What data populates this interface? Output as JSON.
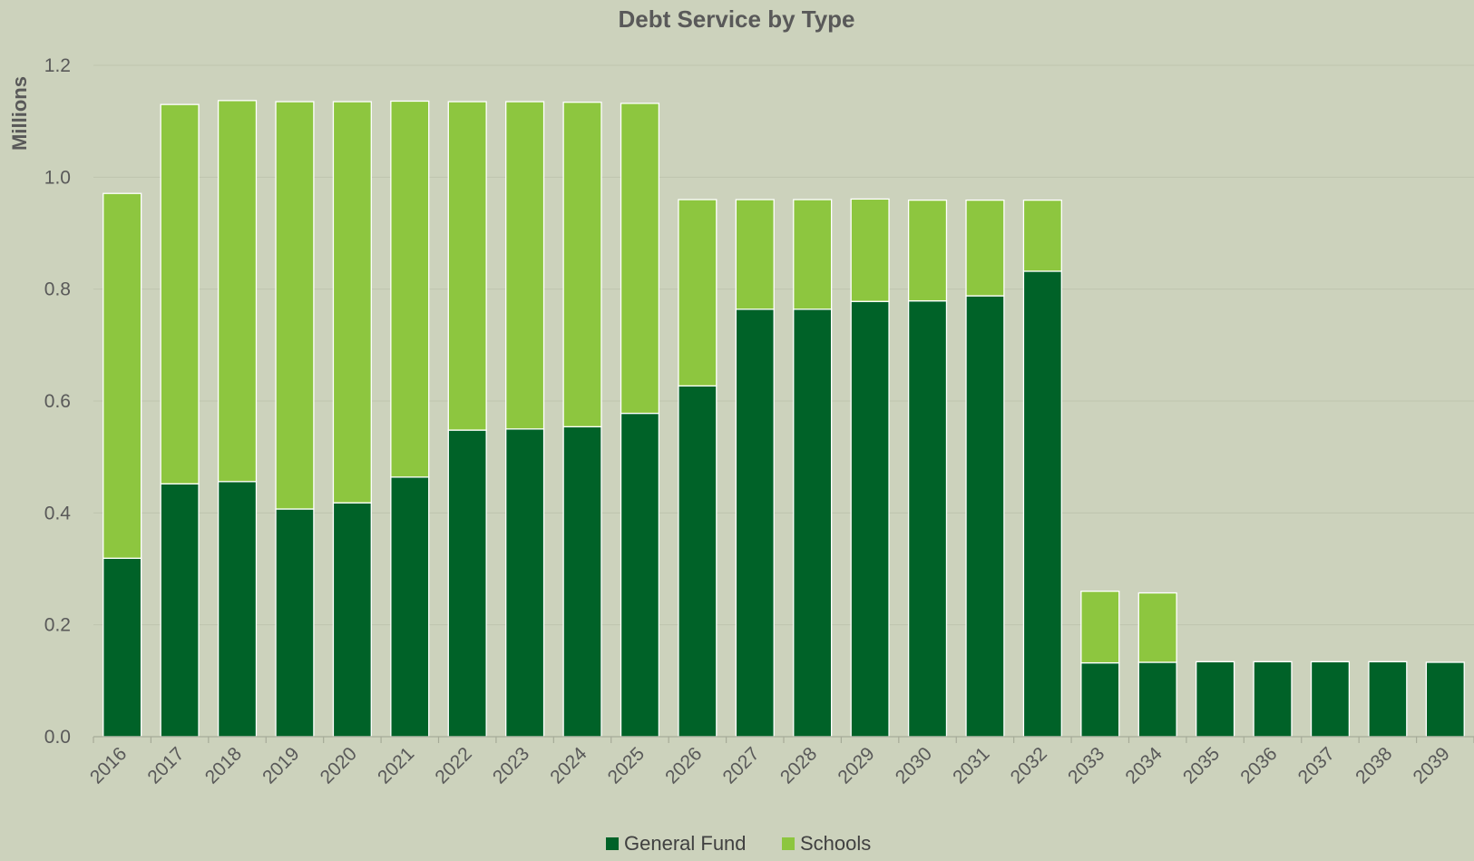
{
  "chart_data": {
    "type": "bar",
    "stacked": true,
    "title": "Debt Service by Type",
    "ylabel": "Millions",
    "xlabel": "",
    "ylim": [
      0,
      1.2
    ],
    "yticks": [
      "0.0",
      "0.2",
      "0.4",
      "0.6",
      "0.8",
      "1.0",
      "1.2"
    ],
    "ytick_values": [
      0,
      0.2,
      0.4,
      0.6,
      0.8,
      1.0,
      1.2
    ],
    "grid": true,
    "legend_position": "bottom",
    "categories": [
      "2016",
      "2017",
      "2018",
      "2019",
      "2020",
      "2021",
      "2022",
      "2023",
      "2024",
      "2025",
      "2026",
      "2027",
      "2028",
      "2029",
      "2030",
      "2031",
      "2032",
      "2033",
      "2034",
      "2035",
      "2036",
      "2037",
      "2038",
      "2039"
    ],
    "series": [
      {
        "name": "General Fund",
        "color": "#006228",
        "values": [
          0.319,
          0.452,
          0.456,
          0.407,
          0.418,
          0.464,
          0.548,
          0.55,
          0.554,
          0.578,
          0.627,
          0.764,
          0.764,
          0.778,
          0.779,
          0.788,
          0.832,
          0.132,
          0.133,
          0.134,
          0.134,
          0.134,
          0.134,
          0.133
        ]
      },
      {
        "name": "Schools",
        "color": "#8DC63F",
        "values": [
          0.652,
          0.678,
          0.681,
          0.728,
          0.717,
          0.672,
          0.587,
          0.585,
          0.58,
          0.554,
          0.333,
          0.196,
          0.196,
          0.183,
          0.18,
          0.171,
          0.127,
          0.128,
          0.124,
          0,
          0,
          0,
          0,
          0
        ]
      }
    ]
  }
}
